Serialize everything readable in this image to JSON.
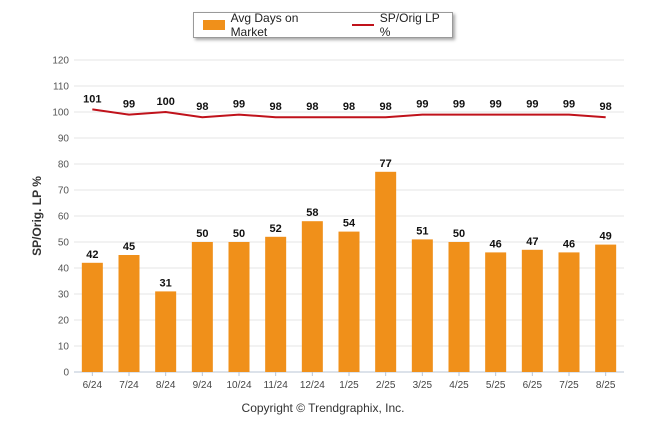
{
  "chart_data": {
    "type": "bar",
    "categories": [
      "6/24",
      "7/24",
      "8/24",
      "9/24",
      "10/24",
      "11/24",
      "12/24",
      "1/25",
      "2/25",
      "3/25",
      "4/25",
      "5/25",
      "6/25",
      "7/25",
      "8/25"
    ],
    "series": [
      {
        "name": "Avg Days on Market",
        "type": "bar",
        "color": "#f0901a",
        "values": [
          42,
          45,
          31,
          50,
          50,
          52,
          58,
          54,
          77,
          51,
          50,
          46,
          47,
          46,
          49
        ]
      },
      {
        "name": "SP/Orig LP %",
        "type": "line",
        "color": "#c0121b",
        "values": [
          101,
          99,
          100,
          98,
          99,
          98,
          98,
          98,
          98,
          99,
          99,
          99,
          99,
          99,
          98
        ]
      }
    ],
    "ylabel": "SP/Orig. LP %",
    "xlabel": "",
    "ylim": [
      0,
      120
    ],
    "yticks": [
      0,
      10,
      20,
      30,
      40,
      50,
      60,
      70,
      80,
      90,
      100,
      110,
      120
    ],
    "grid": true,
    "legend_position": "top-center"
  },
  "legend": {
    "bar_label": "Avg Days on Market",
    "line_label": "SP/Orig LP %"
  },
  "footer": "Copyright © Trendgraphix, Inc."
}
